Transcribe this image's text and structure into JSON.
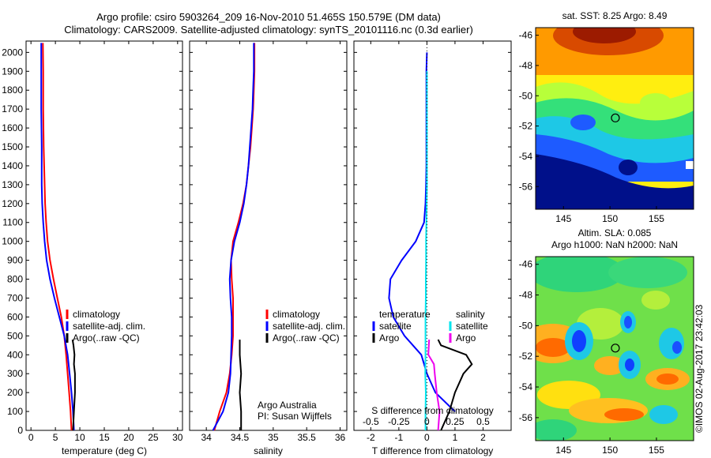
{
  "header": {
    "title_line1": "Argo profile: csiro 5903264_209 16-Nov-2010 51.465S 150.579E (DM data)",
    "title_line2": "Climatology: CARS2009. Satellite-adjusted climatology: synTS_20101116.nc (0.3d earlier)"
  },
  "colors": {
    "climatology": "#ff0000",
    "satellite": "#0000ff",
    "argo": "#000000",
    "sal_satellite": "#00e5ee",
    "sal_argo": "#ee00ee"
  },
  "chart_data": [
    {
      "type": "line",
      "panel": "temperature",
      "xlabel": "temperature (deg C)",
      "ylabel": "",
      "xlim": [
        -1,
        31
      ],
      "ylim": [
        2060,
        0
      ],
      "xticks": [
        0,
        5,
        10,
        15,
        20,
        25,
        30
      ],
      "yticks": [
        0,
        100,
        200,
        300,
        400,
        500,
        600,
        700,
        800,
        900,
        1000,
        1100,
        1200,
        1300,
        1400,
        1500,
        1600,
        1700,
        1800,
        1900,
        2000
      ],
      "legend": [
        "climatology",
        "satellite-adj. clim.",
        "Argo(..raw -QC)"
      ],
      "series": [
        {
          "name": "climatology",
          "color": "#ff0000",
          "x": [
            8.3,
            8.1,
            7.8,
            7.5,
            7.2,
            6.8,
            6.2,
            5.4,
            4.6,
            3.9,
            3.4,
            3.1,
            2.9,
            2.8,
            2.7,
            2.6,
            2.55,
            2.5,
            2.5,
            2.5,
            2.45
          ],
          "y": [
            0,
            100,
            200,
            300,
            400,
            500,
            600,
            700,
            800,
            900,
            1000,
            1100,
            1200,
            1300,
            1400,
            1500,
            1600,
            1700,
            1800,
            1900,
            2050
          ]
        },
        {
          "name": "satellite-adj. clim.",
          "color": "#0000ff",
          "x": [
            8.8,
            8.6,
            8.3,
            7.9,
            7.5,
            6.8,
            5.8,
            4.8,
            3.9,
            3.2,
            2.8,
            2.5,
            2.3,
            2.2,
            2.2,
            2.2,
            2.15,
            2.1,
            2.1,
            2.1,
            2.1
          ],
          "y": [
            0,
            100,
            200,
            300,
            400,
            500,
            600,
            700,
            800,
            900,
            1000,
            1100,
            1200,
            1300,
            1400,
            1500,
            1600,
            1700,
            1800,
            1900,
            2050
          ]
        },
        {
          "name": "Argo(..raw -QC)",
          "color": "#000000",
          "x": [
            8.6,
            8.8,
            9.0,
            9.0,
            8.8,
            8.9,
            8.7,
            8.5
          ],
          "y": [
            0,
            100,
            200,
            300,
            350,
            400,
            450,
            480
          ]
        }
      ]
    },
    {
      "type": "line",
      "panel": "salinity",
      "xlabel": "salinity",
      "ylabel": "",
      "xlim": [
        33.75,
        36.1
      ],
      "ylim": [
        2060,
        0
      ],
      "xticks": [
        34,
        34.5,
        35,
        35.5,
        36
      ],
      "legend": [
        "climatology",
        "satellite-adj. clim.",
        "Argo(..raw -QC)"
      ],
      "annotation": [
        "Argo Australia",
        "PI: Susan Wijffels"
      ],
      "series": [
        {
          "name": "climatology",
          "color": "#ff0000",
          "x": [
            34.12,
            34.2,
            34.3,
            34.35,
            34.38,
            34.4,
            34.4,
            34.4,
            34.38,
            34.37,
            34.4,
            34.48,
            34.55,
            34.6,
            34.63,
            34.66,
            34.68,
            34.7,
            34.71,
            34.72,
            34.72
          ],
          "y": [
            0,
            100,
            200,
            300,
            400,
            500,
            600,
            700,
            800,
            900,
            1000,
            1100,
            1200,
            1300,
            1400,
            1500,
            1600,
            1700,
            1800,
            1900,
            2050
          ]
        },
        {
          "name": "satellite-adj. clim.",
          "color": "#0000ff",
          "x": [
            34.1,
            34.25,
            34.33,
            34.36,
            34.37,
            34.38,
            34.38,
            34.36,
            34.35,
            34.37,
            34.42,
            34.5,
            34.56,
            34.6,
            34.63,
            34.65,
            34.67,
            34.69,
            34.7,
            34.71,
            34.71
          ],
          "y": [
            0,
            100,
            200,
            300,
            400,
            500,
            600,
            700,
            800,
            900,
            1000,
            1100,
            1200,
            1300,
            1400,
            1500,
            1600,
            1700,
            1800,
            1900,
            2050
          ]
        },
        {
          "name": "Argo(..raw -QC)",
          "color": "#000000",
          "x": [
            34.52,
            34.52,
            34.5,
            34.52,
            34.5,
            34.5
          ],
          "y": [
            0,
            100,
            200,
            300,
            400,
            480
          ]
        }
      ]
    },
    {
      "type": "line",
      "panel": "difference",
      "xlabel": "T difference from climatology",
      "x2label": "S difference from climatology",
      "xlim": [
        -2.6,
        3.0
      ],
      "ylim": [
        2060,
        0
      ],
      "xticks": [
        -2,
        -1,
        0,
        1,
        2
      ],
      "x2ticks": [
        -0.5,
        -0.25,
        0,
        0.25,
        0.5
      ],
      "x2tick_labels": [
        "-0.5",
        "-0.25",
        "0",
        "0.25",
        "0.5"
      ],
      "legend_temperature": [
        "temperature",
        "satellite",
        "Argo"
      ],
      "legend_salinity": [
        "salinity",
        "satellite",
        "Argo"
      ],
      "series": [
        {
          "name": "temperature satellite",
          "color": "#0000ff",
          "x": [
            1.0,
            0.3,
            0.0,
            -0.2,
            -0.8,
            -1.2,
            -1.35,
            -1.3,
            -0.9,
            -0.4,
            -0.1,
            -0.05,
            -0.03,
            -0.02,
            -0.02,
            -0.02,
            -0.02,
            -0.02,
            -0.02,
            0.0
          ],
          "y": [
            100,
            200,
            300,
            400,
            500,
            600,
            700,
            800,
            900,
            1000,
            1100,
            1200,
            1300,
            1400,
            1500,
            1600,
            1700,
            1800,
            1900,
            2000
          ]
        },
        {
          "name": "temperature Argo",
          "color": "#000000",
          "x": [
            0.5,
            0.8,
            1.0,
            1.3,
            1.6,
            1.4,
            0.5,
            0.4
          ],
          "y": [
            0,
            100,
            200,
            300,
            350,
            400,
            450,
            480
          ]
        },
        {
          "name": "salinity satellite",
          "color": "#00e5ee",
          "x": [
            -0.05,
            -0.05,
            -0.04,
            -0.06,
            -0.05,
            -0.05,
            -0.05,
            -0.04,
            -0.04,
            -0.03,
            -0.03,
            -0.02,
            -0.01,
            0.0,
            0.0,
            0.0,
            0.0,
            0.0,
            0.0,
            0.0
          ],
          "y": [
            0,
            100,
            200,
            300,
            400,
            500,
            600,
            700,
            800,
            900,
            1000,
            1100,
            1200,
            1300,
            1400,
            1500,
            1600,
            1700,
            1800,
            1900
          ]
        },
        {
          "name": "salinity Argo",
          "color": "#ee00ee",
          "x": [
            0.4,
            0.45,
            0.35,
            0.28,
            0.25,
            0.05,
            0.08
          ],
          "y": [
            0,
            100,
            200,
            300,
            350,
            400,
            480
          ]
        }
      ]
    },
    {
      "type": "heatmap",
      "panel": "sst_map",
      "title": "sat. SST: 8.25 Argo: 8.49",
      "xlim": [
        142,
        159
      ],
      "ylim": [
        -57.5,
        -45.5
      ],
      "xticks": [
        145,
        150,
        155
      ],
      "yticks": [
        -46,
        -48,
        -50,
        -52,
        -54,
        -56
      ],
      "marker": {
        "lon": 150.579,
        "lat": -51.465
      }
    },
    {
      "type": "heatmap",
      "panel": "sla_map",
      "title_line1": "Altim. SLA: 0.085",
      "title_line2": "Argo h1000: NaN h2000: NaN",
      "xlim": [
        142,
        159
      ],
      "ylim": [
        -57.5,
        -45.5
      ],
      "xticks": [
        145,
        150,
        155
      ],
      "yticks": [
        -46,
        -48,
        -50,
        -52,
        -54,
        -56
      ],
      "marker": {
        "lon": 150.579,
        "lat": -51.465
      }
    }
  ],
  "footer": {
    "stamp": "©IMOS 02-Aug-2017 23:42:03"
  }
}
